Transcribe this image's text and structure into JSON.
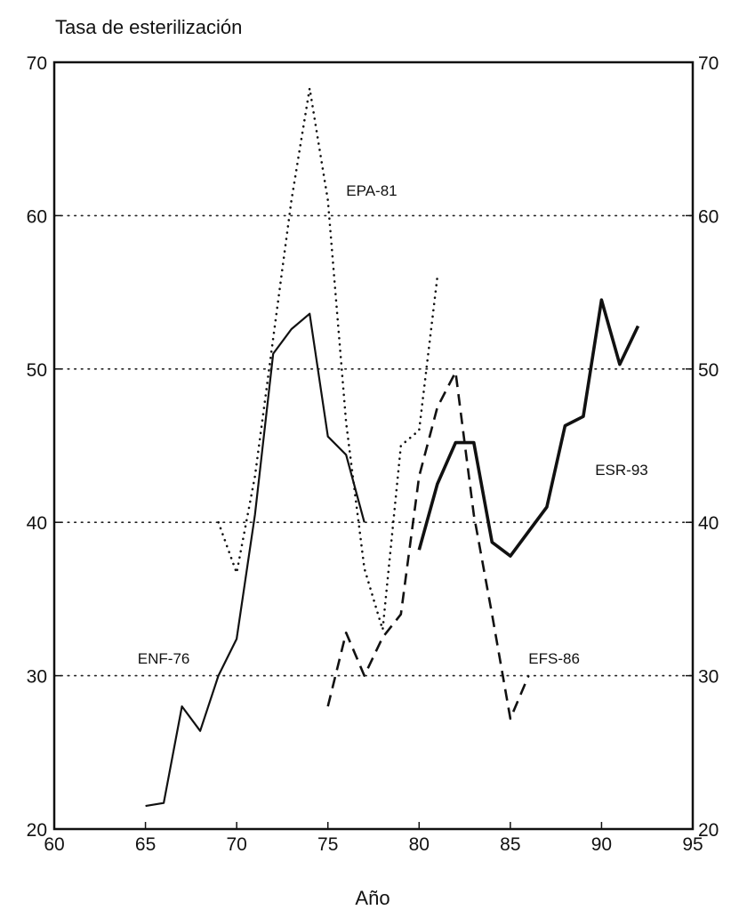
{
  "chart_data": {
    "type": "line",
    "title": "Tasa de esterilización",
    "xlabel": "Año",
    "ylabel": "",
    "xlim": [
      60,
      95
    ],
    "ylim": [
      20,
      70
    ],
    "xticks": [
      60,
      65,
      70,
      75,
      80,
      85,
      90,
      95
    ],
    "yticks": [
      20,
      30,
      40,
      50,
      60,
      70
    ],
    "grid_y_dotted": [
      30,
      40,
      50,
      60
    ],
    "y_axis_right_mirror": true,
    "series": [
      {
        "name": "ENF-76",
        "style": "solid",
        "width": "thin",
        "x": [
          65,
          66,
          67,
          68,
          69,
          70,
          71,
          72,
          73,
          74,
          75,
          76,
          77
        ],
        "y": [
          21.5,
          21.7,
          28,
          26.4,
          30,
          32.4,
          40.5,
          51,
          52.6,
          53.6,
          45.6,
          44.4,
          40
        ]
      },
      {
        "name": "EPA-81",
        "style": "dotted",
        "x": [
          69,
          70,
          71,
          72,
          73,
          74,
          75,
          76,
          77,
          78,
          79,
          80,
          81
        ],
        "y": [
          40,
          36.7,
          43,
          52,
          61,
          68.3,
          61,
          46.5,
          37,
          33,
          45,
          46,
          56
        ]
      },
      {
        "name": "EFS-86",
        "style": "dashed",
        "x": [
          75,
          76,
          77,
          78,
          79,
          80,
          81,
          82,
          83,
          84,
          85,
          86
        ],
        "y": [
          28,
          32.8,
          30,
          32.5,
          34,
          43,
          47.5,
          49.8,
          40.5,
          34,
          27.2,
          30
        ]
      },
      {
        "name": "ESR-93",
        "style": "solid",
        "width": "bold",
        "x": [
          80,
          81,
          82,
          83,
          84,
          85,
          86,
          87,
          88,
          89,
          90,
          91,
          92
        ],
        "y": [
          38.2,
          42.5,
          45.2,
          45.2,
          38.7,
          37.8,
          39.4,
          41,
          46.3,
          46.9,
          54.5,
          50.3,
          52.8
        ]
      }
    ],
    "labels": [
      {
        "series": "ENF-76",
        "text": "ENF-76",
        "x": 66,
        "y": 30.8
      },
      {
        "series": "EPA-81",
        "text": "EPA-81",
        "x": 77.4,
        "y": 61.3
      },
      {
        "series": "EFS-86",
        "text": "EFS-86",
        "x": 87.4,
        "y": 30.8
      },
      {
        "series": "ESR-93",
        "text": "ESR-93",
        "x": 91.1,
        "y": 43.1
      }
    ]
  }
}
